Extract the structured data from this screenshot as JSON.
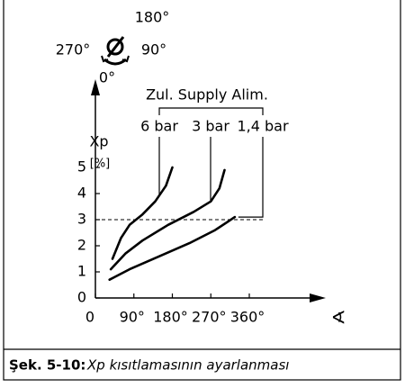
{
  "chart_data": {
    "type": "line",
    "dial": {
      "top": "180°",
      "left": "270°",
      "right": "90°",
      "bottom": "0°"
    },
    "y_label": "Xp",
    "y_unit": "[%]",
    "x_label": "∢",
    "group_label": "Zul. Supply Alim.",
    "series": [
      {
        "name": "6 bar",
        "color": "#000000",
        "x": [
          40,
          60,
          80,
          110,
          140,
          165,
          180
        ],
        "values": [
          1.5,
          2.3,
          2.8,
          3.2,
          3.7,
          4.3,
          5.0
        ]
      },
      {
        "name": "3 bar",
        "color": "#000000",
        "x": [
          36,
          70,
          110,
          170,
          230,
          270,
          290,
          302
        ],
        "values": [
          1.1,
          1.7,
          2.2,
          2.8,
          3.3,
          3.7,
          4.2,
          4.9
        ]
      },
      {
        "name": "1,4 bar",
        "color": "#000000",
        "x": [
          33,
          80,
          150,
          220,
          280,
          326
        ],
        "values": [
          0.7,
          1.1,
          1.6,
          2.1,
          2.6,
          3.1
        ]
      }
    ],
    "reference_line": 3,
    "xlim": [
      0,
      360
    ],
    "xticks": [
      0,
      {
        "value": 90,
        "label": "90°"
      },
      {
        "value": 180,
        "label": "180°"
      },
      {
        "value": 270,
        "label": "270°"
      },
      {
        "value": 360,
        "label": "360°"
      }
    ],
    "ylim": [
      0,
      5
    ],
    "yticks": [
      0,
      1,
      2,
      3,
      4,
      5
    ],
    "caption_label": "Şek. 5-10:",
    "caption": "Xp kısıtlamasının ayarlanması"
  }
}
